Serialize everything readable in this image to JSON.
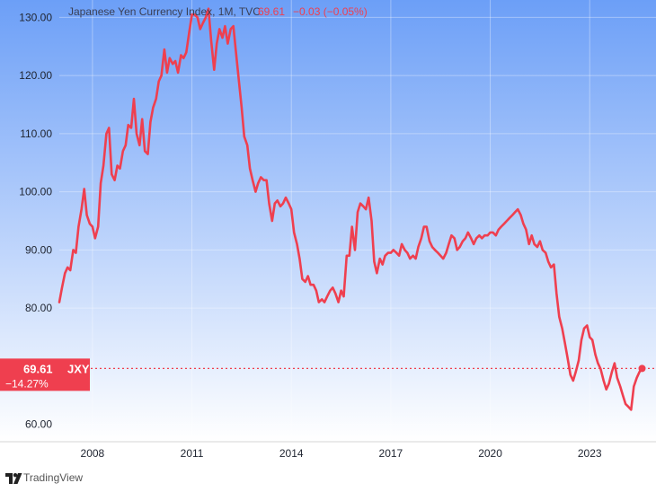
{
  "chart_data": {
    "type": "line",
    "title": "Japanese Yen Currency Index, 1M, TVC",
    "last_value_label": "69.61",
    "change_label": "−0.03 (−0.05%)",
    "badge": {
      "value": "69.61",
      "symbol": "JXY",
      "percent": "−14.27%"
    },
    "ylim": [
      57,
      133
    ],
    "y_ticks": [
      60,
      80,
      90,
      100,
      110,
      120,
      130
    ],
    "y_tick_labels": [
      "60.00",
      "80.00",
      "90.00",
      "100.00",
      "110.00",
      "120.00",
      "130.00"
    ],
    "x_ticks": [
      2008,
      2011,
      2014,
      2017,
      2020,
      2023
    ],
    "x_tick_labels": [
      "2008",
      "2011",
      "2014",
      "2017",
      "2020",
      "2023"
    ],
    "xlim": [
      2007.0,
      2025.0
    ],
    "last_price_line": 69.61,
    "grid": true,
    "background_gradient": [
      "#6c9ff7",
      "#ffffff"
    ],
    "line_color": "#ef3f4f",
    "series": [
      {
        "x": [
          2007.0,
          2007.08,
          2007.17,
          2007.25,
          2007.33,
          2007.42,
          2007.5,
          2007.58,
          2007.67,
          2007.75,
          2007.83,
          2007.92,
          2008.0,
          2008.08,
          2008.17,
          2008.25,
          2008.33,
          2008.42,
          2008.5,
          2008.58,
          2008.67,
          2008.75,
          2008.83,
          2008.92,
          2009.0,
          2009.08,
          2009.17,
          2009.25,
          2009.33,
          2009.42,
          2009.5,
          2009.58,
          2009.67,
          2009.75,
          2009.83,
          2009.92,
          2010.0,
          2010.08,
          2010.17,
          2010.25,
          2010.33,
          2010.42,
          2010.5,
          2010.58,
          2010.67,
          2010.75,
          2010.83,
          2010.92,
          2011.0,
          2011.08,
          2011.17,
          2011.25,
          2011.33,
          2011.42,
          2011.5,
          2011.58,
          2011.67,
          2011.75,
          2011.83,
          2011.92,
          2012.0,
          2012.08,
          2012.17,
          2012.25,
          2012.33,
          2012.42,
          2012.5,
          2012.58,
          2012.67,
          2012.75,
          2012.83,
          2012.92,
          2013.0,
          2013.08,
          2013.17,
          2013.25,
          2013.33,
          2013.42,
          2013.5,
          2013.58,
          2013.67,
          2013.75,
          2013.83,
          2013.92,
          2014.0,
          2014.08,
          2014.17,
          2014.25,
          2014.33,
          2014.42,
          2014.5,
          2014.58,
          2014.67,
          2014.75,
          2014.83,
          2014.92,
          2015.0,
          2015.08,
          2015.17,
          2015.25,
          2015.33,
          2015.42,
          2015.5,
          2015.58,
          2015.67,
          2015.75,
          2015.83,
          2015.92,
          2016.0,
          2016.08,
          2016.17,
          2016.25,
          2016.33,
          2016.42,
          2016.5,
          2016.58,
          2016.67,
          2016.75,
          2016.83,
          2016.92,
          2017.0,
          2017.08,
          2017.17,
          2017.25,
          2017.33,
          2017.42,
          2017.5,
          2017.58,
          2017.67,
          2017.75,
          2017.83,
          2017.92,
          2018.0,
          2018.08,
          2018.17,
          2018.25,
          2018.33,
          2018.42,
          2018.5,
          2018.58,
          2018.67,
          2018.75,
          2018.83,
          2018.92,
          2019.0,
          2019.08,
          2019.17,
          2019.25,
          2019.33,
          2019.42,
          2019.5,
          2019.58,
          2019.67,
          2019.75,
          2019.83,
          2019.92,
          2020.0,
          2020.08,
          2020.17,
          2020.25,
          2020.33,
          2020.42,
          2020.5,
          2020.58,
          2020.67,
          2020.75,
          2020.83,
          2020.92,
          2021.0,
          2021.08,
          2021.17,
          2021.25,
          2021.33,
          2021.42,
          2021.5,
          2021.58,
          2021.67,
          2021.75,
          2021.83,
          2021.92,
          2022.0,
          2022.08,
          2022.17,
          2022.25,
          2022.33,
          2022.42,
          2022.5,
          2022.58,
          2022.67,
          2022.75,
          2022.83,
          2022.92,
          2023.0,
          2023.08,
          2023.17,
          2023.25,
          2023.33,
          2023.42,
          2023.5,
          2023.58,
          2023.67,
          2023.75,
          2023.83,
          2023.92,
          2024.0,
          2024.08,
          2024.17,
          2024.25,
          2024.33,
          2024.42,
          2024.5,
          2024.58
        ],
        "values": [
          81.0,
          83.5,
          86.0,
          87.0,
          86.5,
          90.0,
          89.5,
          94.0,
          97.0,
          100.5,
          96.0,
          94.5,
          94.0,
          92.0,
          94.0,
          101.5,
          104.5,
          110.0,
          111.0,
          103.0,
          102.0,
          104.5,
          104.0,
          107.0,
          108.0,
          111.5,
          111.0,
          116.0,
          110.0,
          108.0,
          112.5,
          107.0,
          106.5,
          112.0,
          114.5,
          116.0,
          119.0,
          120.0,
          124.5,
          120.5,
          123.0,
          122.0,
          122.5,
          120.5,
          123.5,
          123.0,
          124.0,
          127.5,
          130.5,
          130.5,
          130.0,
          128.0,
          129.0,
          130.0,
          131.5,
          126.0,
          121.0,
          125.5,
          128.0,
          126.5,
          128.5,
          125.5,
          128.0,
          128.5,
          124.0,
          119.0,
          114.5,
          109.5,
          108.0,
          104.0,
          102.0,
          100.0,
          101.5,
          102.5,
          102.0,
          102.0,
          98.0,
          95.0,
          98.0,
          98.5,
          97.5,
          98.0,
          99.0,
          98.0,
          97.0,
          93.0,
          91.0,
          88.5,
          85.0,
          84.5,
          85.5,
          84.0,
          84.0,
          83.0,
          81.0,
          81.5,
          81.0,
          82.0,
          83.0,
          83.5,
          82.5,
          81.0,
          83.0,
          82.0,
          89.0,
          89.0,
          94.0,
          90.0,
          96.5,
          98.0,
          97.5,
          97.0,
          99.0,
          95.0,
          88.0,
          86.0,
          88.5,
          87.5,
          89.0,
          89.5,
          89.5,
          90.0,
          89.5,
          89.0,
          91.0,
          90.0,
          89.5,
          88.5,
          89.0,
          88.5,
          90.5,
          92.0,
          94.0,
          94.0,
          91.5,
          90.5,
          90.0,
          89.5,
          89.0,
          88.5,
          89.5,
          91.0,
          92.5,
          92.0,
          90.0,
          90.5,
          91.5,
          92.0,
          93.0,
          92.0,
          91.0,
          92.0,
          92.5,
          92.0,
          92.5,
          92.5,
          93.0,
          93.0,
          92.5,
          93.5,
          94.0,
          94.5,
          95.0,
          95.5,
          96.0,
          96.5,
          97.0,
          96.0,
          94.5,
          93.5,
          91.0,
          92.5,
          91.0,
          90.5,
          91.5,
          90.0,
          89.5,
          88.0,
          87.0,
          87.5,
          82.5,
          78.5,
          76.5,
          74.0,
          71.5,
          68.5,
          67.5,
          69.0,
          71.0,
          74.5,
          76.5,
          77.0,
          75.0,
          74.5,
          72.0,
          70.5,
          69.5,
          67.5,
          66.0,
          67.0,
          69.0,
          70.5,
          68.0,
          66.5,
          65.0,
          63.5,
          63.0,
          62.5,
          66.5,
          68.0,
          69.0,
          69.61
        ]
      }
    ]
  },
  "footer": {
    "brand": "TradingView"
  }
}
